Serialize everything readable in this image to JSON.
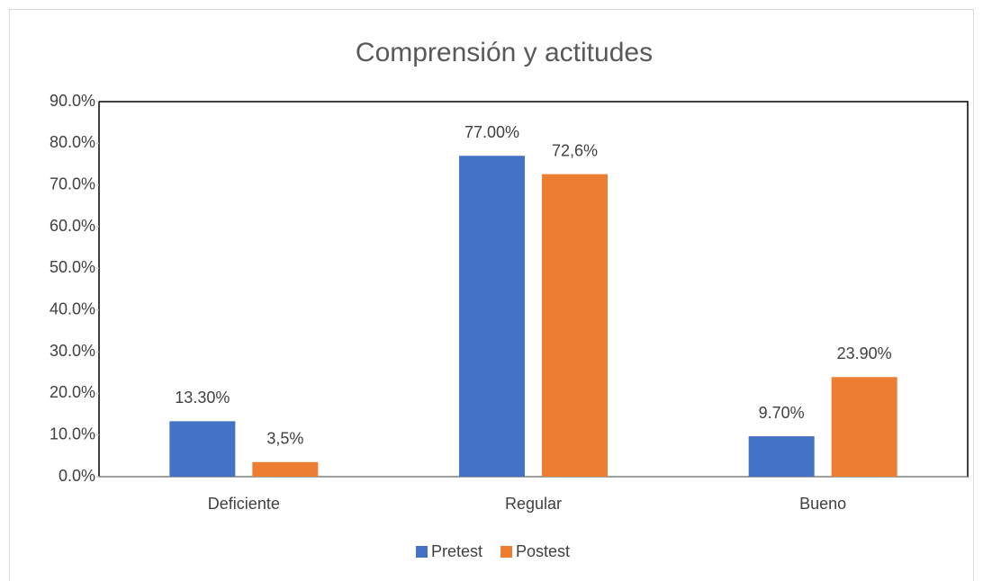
{
  "chart_data": {
    "type": "bar",
    "title": "Comprensión y actitudes",
    "categories": [
      "Deficiente",
      "Regular",
      "Bueno"
    ],
    "series": [
      {
        "name": "Pretest",
        "color": "#4472c4",
        "values": [
          13.3,
          77,
          9.7
        ],
        "value_labels": [
          "13.30%",
          "77.00%",
          "9.70%"
        ]
      },
      {
        "name": "Postest",
        "color": "#ed7d31",
        "values": [
          3.5,
          72.6,
          23.9
        ],
        "value_labels": [
          "3,5%",
          "72,6%",
          "23.90%"
        ]
      }
    ],
    "ylim": [
      0,
      90
    ],
    "yticks": [
      {
        "value": 0,
        "label": "0.0%"
      },
      {
        "value": 10,
        "label": "10.0%"
      },
      {
        "value": 20,
        "label": "20.0%"
      },
      {
        "value": 30,
        "label": "30.0%"
      },
      {
        "value": 40,
        "label": "40.0%"
      },
      {
        "value": 50,
        "label": "50.0%"
      },
      {
        "value": 60,
        "label": "60.0%"
      },
      {
        "value": 70,
        "label": "70.0%"
      },
      {
        "value": 80,
        "label": "80.0%"
      },
      {
        "value": 90,
        "label": "90.0%"
      }
    ],
    "grid": false,
    "legend": "bottom"
  }
}
